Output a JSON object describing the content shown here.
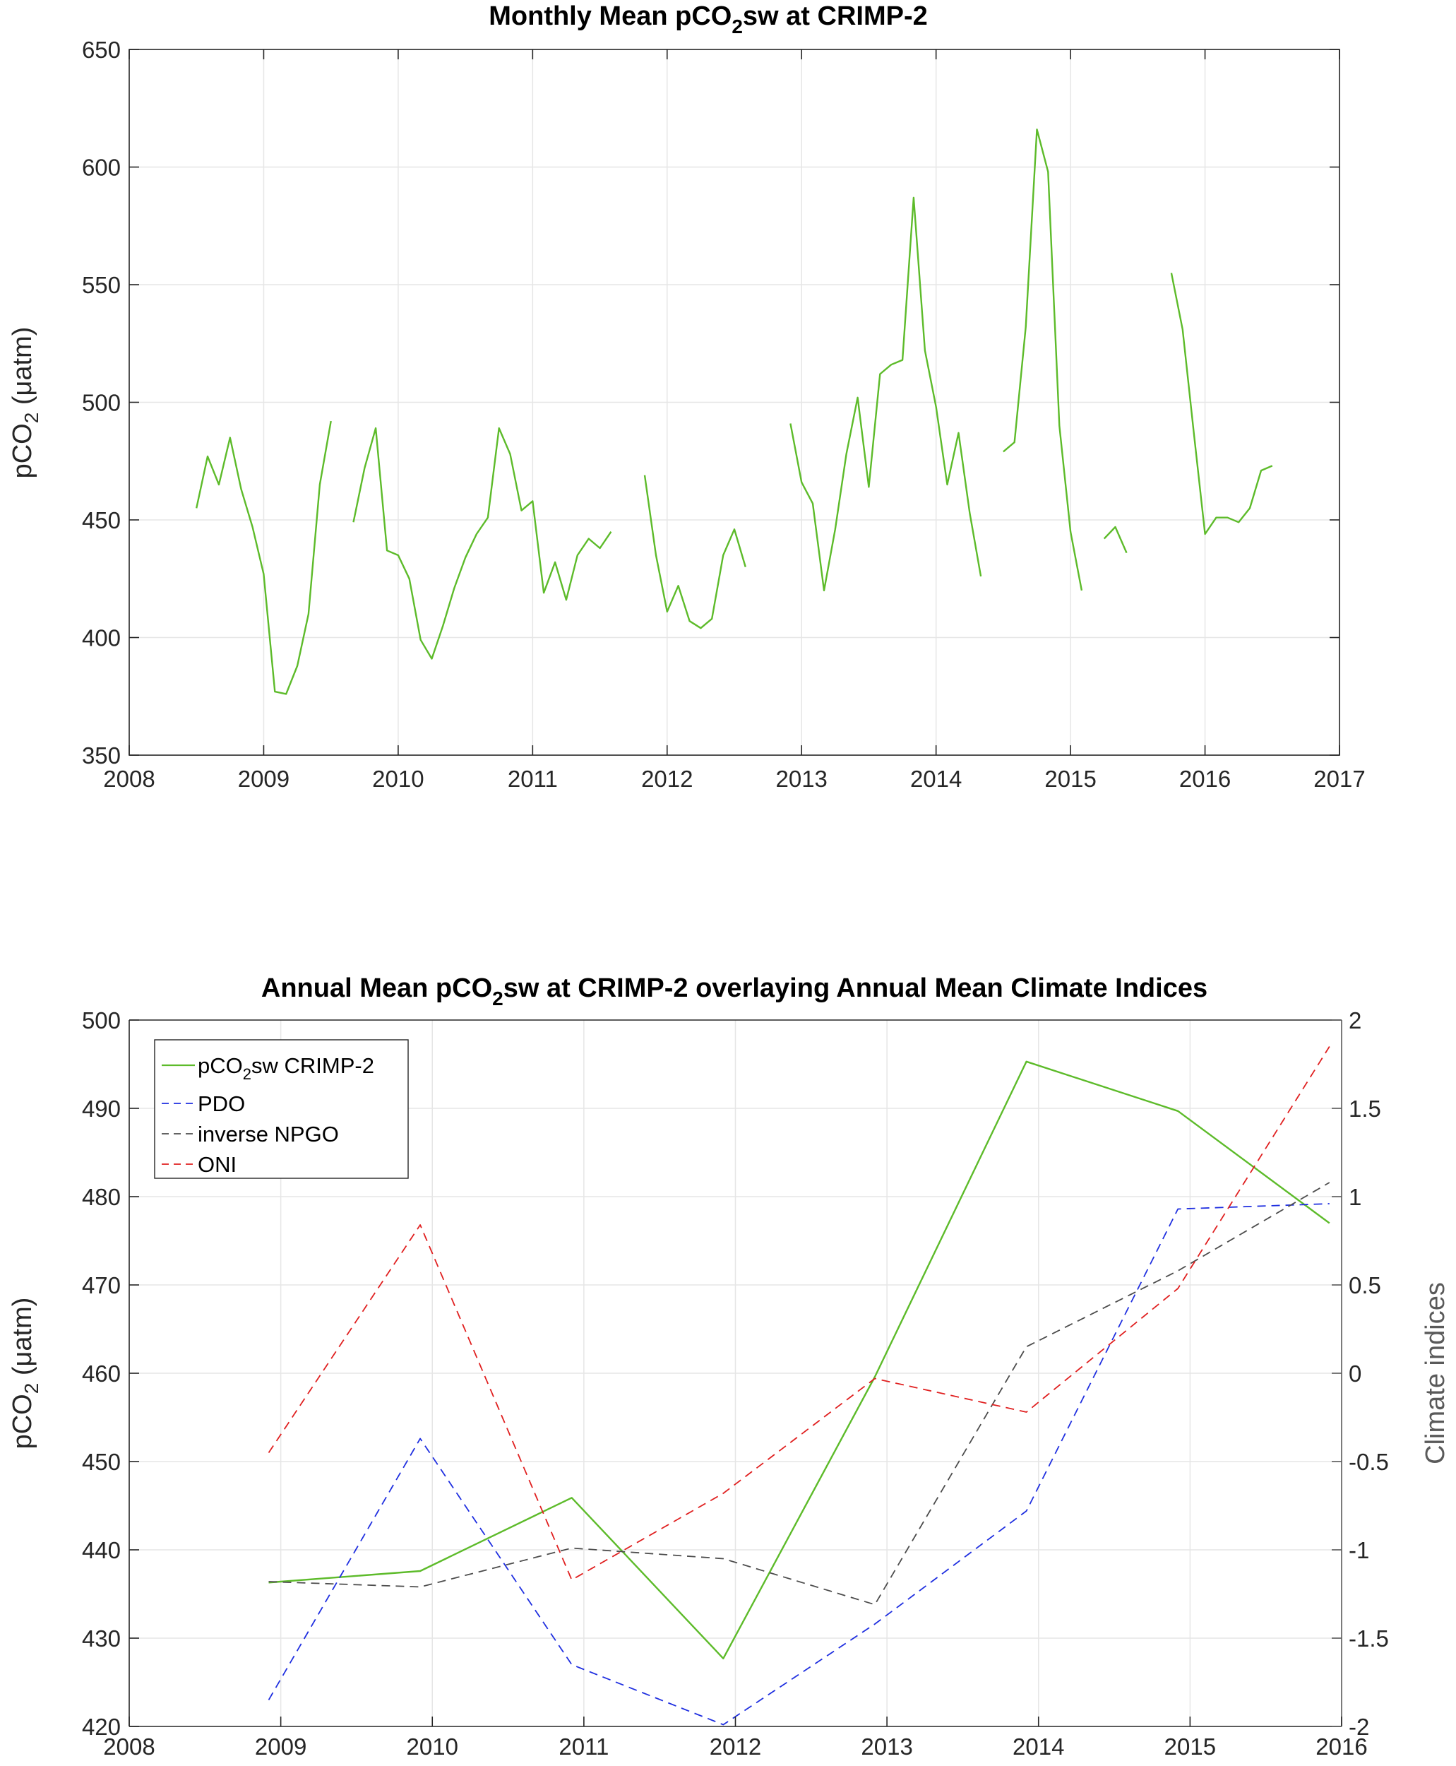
{
  "chart_data": [
    {
      "type": "line",
      "title": "Monthly Mean pCO",
      "title_sub": "2",
      "title_tail": "sw at CRIMP-2",
      "ylabel": "pCO",
      "ylabel_sub": "2",
      "ylabel_tail": " (μatm)",
      "xlabel": "",
      "xlim": [
        2008,
        2017
      ],
      "ylim": [
        350,
        650
      ],
      "xticks": [
        "2008",
        "2009",
        "2010",
        "2011",
        "2012",
        "2013",
        "2014",
        "2015",
        "2016",
        "2017"
      ],
      "yticks": [
        "350",
        "400",
        "450",
        "500",
        "550",
        "600",
        "650"
      ],
      "grid": true,
      "series": [
        {
          "name": "pCO2sw CRIMP-2",
          "color": "#5dbb2a",
          "segments": [
            [
              [
                2008.5,
                455
              ],
              [
                2008.583,
                477
              ],
              [
                2008.667,
                465
              ],
              [
                2008.75,
                485
              ],
              [
                2008.833,
                463
              ],
              [
                2008.917,
                447
              ],
              [
                2009.0,
                427
              ],
              [
                2009.083,
                377
              ],
              [
                2009.167,
                376
              ],
              [
                2009.25,
                388
              ],
              [
                2009.333,
                410
              ],
              [
                2009.417,
                465
              ],
              [
                2009.5,
                492
              ]
            ],
            [
              [
                2009.667,
                449
              ],
              [
                2009.75,
                472
              ],
              [
                2009.833,
                489
              ],
              [
                2009.917,
                437
              ],
              [
                2010.0,
                435
              ],
              [
                2010.083,
                425
              ],
              [
                2010.167,
                399
              ],
              [
                2010.25,
                391
              ],
              [
                2010.333,
                405
              ],
              [
                2010.417,
                421
              ],
              [
                2010.5,
                434
              ],
              [
                2010.583,
                444
              ],
              [
                2010.667,
                451
              ],
              [
                2010.75,
                489
              ],
              [
                2010.833,
                478
              ],
              [
                2010.917,
                454
              ],
              [
                2011.0,
                458
              ],
              [
                2011.083,
                419
              ],
              [
                2011.167,
                432
              ],
              [
                2011.25,
                416
              ],
              [
                2011.333,
                435
              ],
              [
                2011.417,
                442
              ],
              [
                2011.5,
                438
              ],
              [
                2011.583,
                445
              ]
            ],
            [
              [
                2011.833,
                469
              ],
              [
                2011.917,
                435
              ],
              [
                2012.0,
                411
              ],
              [
                2012.083,
                422
              ],
              [
                2012.167,
                407
              ],
              [
                2012.25,
                404
              ],
              [
                2012.333,
                408
              ],
              [
                2012.417,
                435
              ],
              [
                2012.5,
                446
              ],
              [
                2012.583,
                430
              ]
            ],
            [
              [
                2012.917,
                491
              ],
              [
                2013.0,
                466
              ],
              [
                2013.083,
                457
              ],
              [
                2013.167,
                420
              ],
              [
                2013.25,
                446
              ],
              [
                2013.333,
                478
              ],
              [
                2013.417,
                502
              ],
              [
                2013.5,
                464
              ],
              [
                2013.583,
                512
              ],
              [
                2013.667,
                516
              ],
              [
                2013.75,
                518
              ],
              [
                2013.833,
                587
              ],
              [
                2013.917,
                522
              ],
              [
                2014.0,
                498
              ],
              [
                2014.083,
                465
              ],
              [
                2014.167,
                487
              ],
              [
                2014.25,
                453
              ],
              [
                2014.333,
                426
              ]
            ],
            [
              [
                2014.5,
                479
              ],
              [
                2014.583,
                483
              ],
              [
                2014.667,
                532
              ],
              [
                2014.75,
                616
              ],
              [
                2014.833,
                598
              ],
              [
                2014.917,
                490
              ],
              [
                2015.0,
                445
              ],
              [
                2015.083,
                420
              ]
            ],
            [
              [
                2015.25,
                442
              ],
              [
                2015.333,
                447
              ],
              [
                2015.417,
                436
              ]
            ],
            [
              [
                2015.75,
                555
              ],
              [
                2015.833,
                531
              ],
              [
                2015.917,
                487
              ],
              [
                2016.0,
                444
              ],
              [
                2016.083,
                451
              ],
              [
                2016.167,
                451
              ],
              [
                2016.25,
                449
              ],
              [
                2016.333,
                455
              ],
              [
                2016.417,
                471
              ],
              [
                2016.5,
                473
              ]
            ]
          ]
        }
      ]
    },
    {
      "type": "line",
      "title": "Annual Mean pCO",
      "title_sub": "2",
      "title_tail": "sw at CRIMP-2 overlaying Annual Mean Climate Indices",
      "ylabel": "pCO",
      "ylabel_sub": "2",
      "ylabel_tail": " (μatm)",
      "y2label": "Climate indices",
      "xlabel": "",
      "xlim": [
        2008,
        2016
      ],
      "ylim": [
        420,
        500
      ],
      "y2lim": [
        -2,
        2
      ],
      "xticks": [
        "2008",
        "2009",
        "2010",
        "2011",
        "2012",
        "2013",
        "2014",
        "2015",
        "2016"
      ],
      "yticks": [
        "420",
        "430",
        "440",
        "450",
        "460",
        "470",
        "480",
        "490",
        "500"
      ],
      "y2ticks": [
        "-2",
        "-1.5",
        "-1",
        "-0.5",
        "0",
        "0.5",
        "1",
        "1.5",
        "2"
      ],
      "grid": true,
      "legend": {
        "position": "top-left",
        "entries": [
          {
            "label": "pCO",
            "sub": "2",
            "tail": "sw CRIMP-2",
            "color": "#5dbb2a",
            "dashed": false
          },
          {
            "label": "PDO",
            "sub": "",
            "tail": "",
            "color": "#1f2fe0",
            "dashed": true
          },
          {
            "label": "inverse NPGO",
            "sub": "",
            "tail": "",
            "color": "#4d4d4d",
            "dashed": true
          },
          {
            "label": "ONI",
            "sub": "",
            "tail": "",
            "color": "#e02020",
            "dashed": true
          }
        ]
      },
      "x": [
        2008.92,
        2009.92,
        2010.92,
        2011.92,
        2012.92,
        2013.92,
        2014.92,
        2015.92
      ],
      "series": [
        {
          "name": "pCO2sw CRIMP-2",
          "axis": "left",
          "color": "#5dbb2a",
          "dashed": false,
          "values": [
            436.3,
            437.6,
            445.9,
            427.7,
            459.6,
            495.3,
            489.7,
            477.0
          ]
        },
        {
          "name": "PDO",
          "axis": "right",
          "color": "#1f2fe0",
          "dashed": true,
          "values": [
            -1.85,
            -0.37,
            -1.65,
            -1.99,
            -1.42,
            -0.78,
            0.93,
            0.96
          ]
        },
        {
          "name": "inverse NPGO",
          "axis": "right",
          "color": "#4d4d4d",
          "dashed": true,
          "values": [
            -1.18,
            -1.21,
            -0.99,
            -1.05,
            -1.31,
            0.15,
            0.58,
            1.08
          ]
        },
        {
          "name": "ONI",
          "axis": "right",
          "color": "#e02020",
          "dashed": true,
          "values": [
            -0.45,
            0.84,
            -1.17,
            -0.68,
            -0.03,
            -0.22,
            0.48,
            1.85
          ]
        }
      ]
    }
  ]
}
